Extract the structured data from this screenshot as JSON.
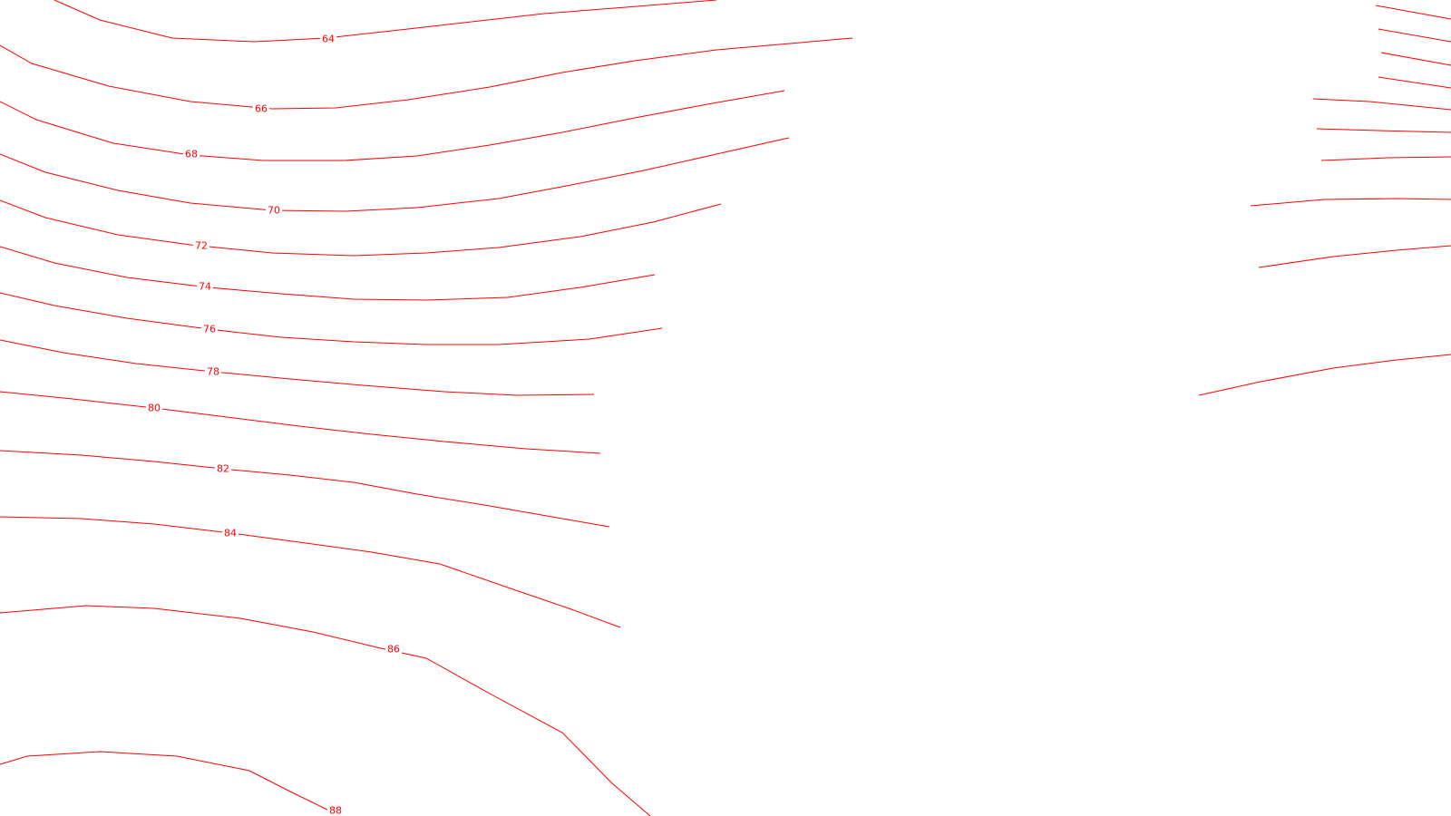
{
  "map": {
    "line_color": "#ff0000",
    "background": "#ffffff",
    "contours": [
      {
        "id": "c64",
        "label": "64"
      },
      {
        "id": "c66",
        "label": "66"
      },
      {
        "id": "c68",
        "label": "68"
      },
      {
        "id": "c70",
        "label": "70"
      },
      {
        "id": "c72",
        "label": "72"
      },
      {
        "id": "c74",
        "label": "74"
      },
      {
        "id": "c76",
        "label": "76"
      },
      {
        "id": "c78",
        "label": "78"
      },
      {
        "id": "c80",
        "label": "80"
      },
      {
        "id": "c82",
        "label": "82"
      },
      {
        "id": "c84",
        "label": "84"
      },
      {
        "id": "c86",
        "label": "86"
      },
      {
        "id": "c88",
        "label": "88"
      }
    ]
  }
}
